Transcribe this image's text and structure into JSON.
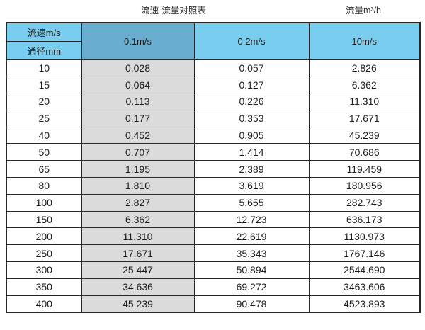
{
  "page": {
    "title_left": "流速-流量对照表",
    "title_right": "流量m³/h"
  },
  "table": {
    "corner_top": "流速m/s",
    "corner_bottom": "通径mm",
    "velocity_columns": [
      "0.1m/s",
      "0.2m/s",
      "10m/s"
    ],
    "rows": [
      {
        "dn": "10",
        "v01": "0.028",
        "v02": "0.057",
        "v10": "2.826"
      },
      {
        "dn": "15",
        "v01": "0.064",
        "v02": "0.127",
        "v10": "6.362"
      },
      {
        "dn": "20",
        "v01": "0.113",
        "v02": "0.226",
        "v10": "11.310"
      },
      {
        "dn": "25",
        "v01": "0.177",
        "v02": "0.353",
        "v10": "17.671"
      },
      {
        "dn": "40",
        "v01": "0.452",
        "v02": "0.905",
        "v10": "45.239"
      },
      {
        "dn": "50",
        "v01": "0.707",
        "v02": "1.414",
        "v10": "70.686"
      },
      {
        "dn": "65",
        "v01": "1.195",
        "v02": "2.389",
        "v10": "119.459"
      },
      {
        "dn": "80",
        "v01": "1.810",
        "v02": "3.619",
        "v10": "180.956"
      },
      {
        "dn": "100",
        "v01": "2.827",
        "v02": "5.655",
        "v10": "282.743"
      },
      {
        "dn": "150",
        "v01": "6.362",
        "v02": "12.723",
        "v10": "636.173"
      },
      {
        "dn": "200",
        "v01": "11.310",
        "v02": "22.619",
        "v10": "1130.973"
      },
      {
        "dn": "250",
        "v01": "17.671",
        "v02": "35.343",
        "v10": "1767.146"
      },
      {
        "dn": "300",
        "v01": "25.447",
        "v02": "50.894",
        "v10": "2544.690"
      },
      {
        "dn": "350",
        "v01": "34.636",
        "v02": "69.272",
        "v10": "3463.606"
      },
      {
        "dn": "400",
        "v01": "45.239",
        "v02": "90.478",
        "v10": "4523.893"
      }
    ]
  },
  "colors": {
    "header_blue": "#79CEF0",
    "header_blue_dark": "#69AED0",
    "col_gray": "#DBDBDB",
    "border": "#262626",
    "text": "#1c1c1c"
  },
  "chart_data": {
    "type": "table",
    "title": "流速-流量对照表",
    "unit_label": "流量m³/h",
    "row_header": "通径mm",
    "col_header": "流速m/s",
    "categories": [
      10,
      15,
      20,
      25,
      40,
      50,
      65,
      80,
      100,
      150,
      200,
      250,
      300,
      350,
      400
    ],
    "series": [
      {
        "name": "0.1m/s",
        "values": [
          0.028,
          0.064,
          0.113,
          0.177,
          0.452,
          0.707,
          1.195,
          1.81,
          2.827,
          6.362,
          11.31,
          17.671,
          25.447,
          34.636,
          45.239
        ]
      },
      {
        "name": "0.2m/s",
        "values": [
          0.057,
          0.127,
          0.226,
          0.353,
          0.905,
          1.414,
          2.389,
          3.619,
          5.655,
          12.723,
          22.619,
          35.343,
          50.894,
          69.272,
          90.478
        ]
      },
      {
        "name": "10m/s",
        "values": [
          2.826,
          6.362,
          11.31,
          17.671,
          45.239,
          70.686,
          119.459,
          180.956,
          282.743,
          636.173,
          1130.973,
          1767.146,
          2544.69,
          3463.606,
          4523.893
        ]
      }
    ]
  }
}
